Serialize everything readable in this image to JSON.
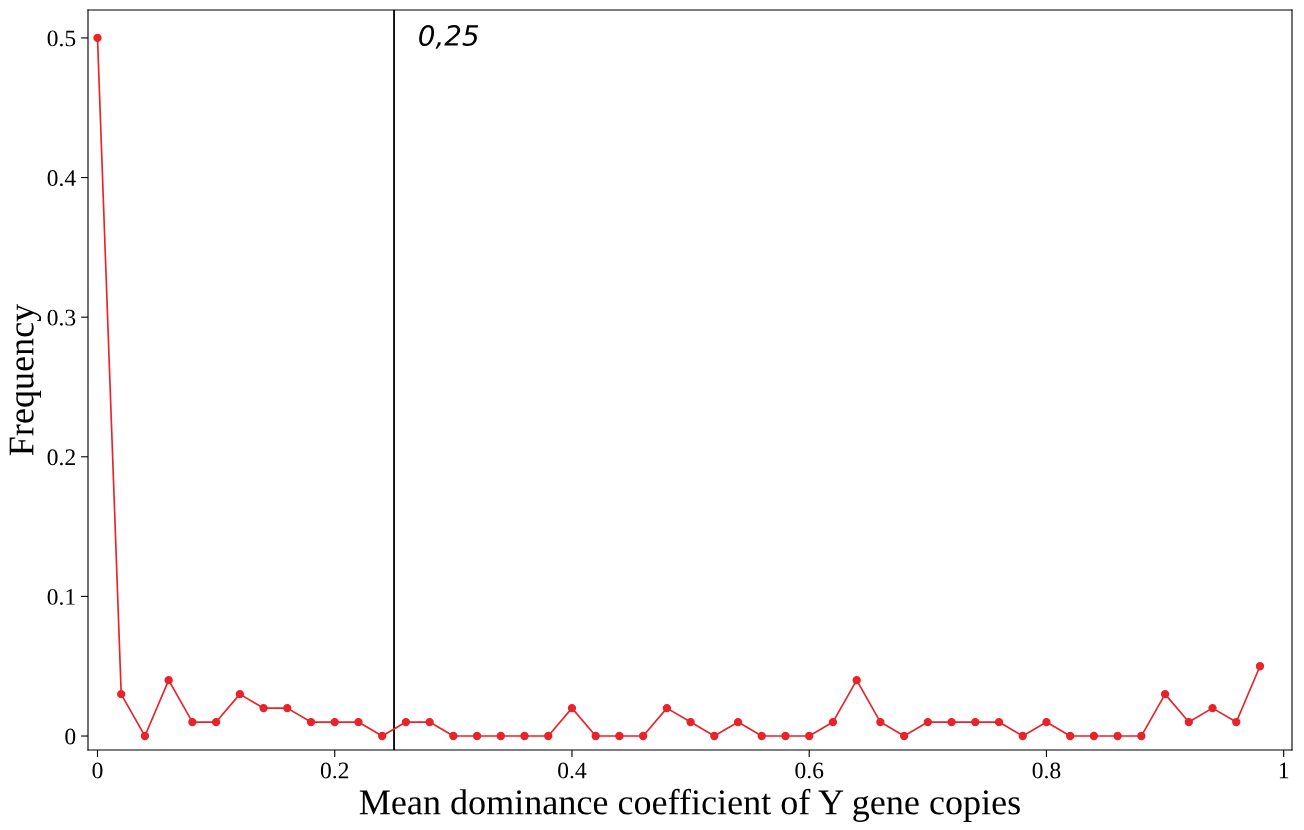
{
  "chart_data": {
    "type": "line",
    "xlabel": "Mean dominance coefficient of Y gene copies",
    "ylabel": "Frequency",
    "x": [
      0,
      0.02,
      0.04,
      0.06,
      0.08,
      0.1,
      0.12,
      0.14,
      0.16,
      0.18,
      0.2,
      0.22,
      0.24,
      0.26,
      0.28,
      0.3,
      0.32,
      0.34,
      0.36,
      0.38,
      0.4,
      0.42,
      0.44,
      0.46,
      0.48,
      0.5,
      0.52,
      0.54,
      0.56,
      0.58,
      0.6,
      0.62,
      0.64,
      0.66,
      0.68,
      0.7,
      0.72,
      0.74,
      0.76,
      0.78,
      0.8,
      0.82,
      0.84,
      0.86,
      0.88,
      0.9,
      0.92,
      0.94,
      0.96,
      0.98
    ],
    "series": [
      {
        "color": "#e8232a",
        "values": [
          0.5,
          0.03,
          0,
          0.04,
          0.01,
          0.01,
          0.03,
          0.02,
          0.02,
          0.01,
          0.01,
          0.01,
          0,
          0.01,
          0.01,
          0,
          0,
          0,
          0,
          0,
          0.02,
          0,
          0,
          0,
          0.02,
          0.01,
          0,
          0.01,
          0,
          0,
          0,
          0.01,
          0.04,
          0.01,
          0,
          0.01,
          0.01,
          0.01,
          0.01,
          0,
          0.01,
          0,
          0,
          0,
          0,
          0.03,
          0.01,
          0.02,
          0.01,
          0.05
        ]
      }
    ],
    "xlim": [
      -0.008,
      1.007
    ],
    "ylim": [
      -0.01,
      0.52
    ],
    "xticks": [
      0,
      0.2,
      0.4,
      0.6,
      0.8,
      1
    ],
    "yticks": [
      0,
      0.1,
      0.2,
      0.3,
      0.4,
      0.5
    ],
    "ref_lines": [
      {
        "axis": "x",
        "value": 0.25,
        "label": "0,25",
        "color": "#000000"
      }
    ],
    "marker": "circle",
    "line_style": "solid",
    "grid": false,
    "legend": false
  }
}
